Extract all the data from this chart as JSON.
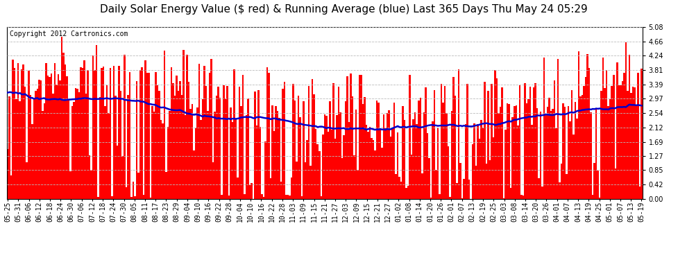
{
  "title": "Daily Solar Energy Value ($ red) & Running Average (blue) Last 365 Days Thu May 24 05:29",
  "copyright": "Copyright 2012 Cartronics.com",
  "ylabel_right": [
    "0.00",
    "0.42",
    "0.85",
    "1.27",
    "1.69",
    "2.12",
    "2.54",
    "2.97",
    "3.39",
    "3.81",
    "4.24",
    "4.66",
    "5.08"
  ],
  "ymax": 5.08,
  "ymin": 0.0,
  "bar_color": "#ff0000",
  "line_color": "#0000cc",
  "background_color": "#ffffff",
  "grid_color": "#bbbbbb",
  "title_fontsize": 11,
  "copyright_fontsize": 7,
  "tick_fontsize": 7,
  "x_tick_labels": [
    "05-25",
    "05-31",
    "06-06",
    "06-12",
    "06-18",
    "06-24",
    "06-30",
    "07-06",
    "07-12",
    "07-18",
    "07-24",
    "07-30",
    "08-05",
    "08-11",
    "08-17",
    "08-23",
    "08-29",
    "09-04",
    "09-10",
    "09-16",
    "09-22",
    "09-28",
    "10-04",
    "10-10",
    "10-16",
    "10-22",
    "10-28",
    "11-03",
    "11-09",
    "11-15",
    "11-21",
    "11-27",
    "12-03",
    "12-09",
    "12-15",
    "12-21",
    "12-27",
    "01-02",
    "01-08",
    "01-14",
    "01-20",
    "01-26",
    "02-01",
    "02-07",
    "02-13",
    "02-19",
    "02-25",
    "03-03",
    "03-08",
    "03-14",
    "03-20",
    "03-26",
    "04-01",
    "04-07",
    "04-13",
    "04-19",
    "04-25",
    "05-01",
    "05-07",
    "05-13",
    "05-19"
  ],
  "num_bars": 365,
  "seed": 7
}
